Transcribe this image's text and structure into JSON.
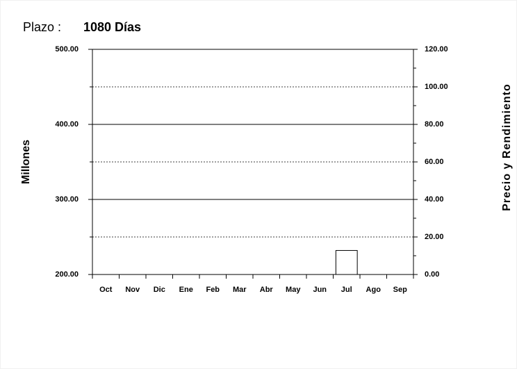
{
  "chart_data": {
    "type": "bar",
    "title": "Plazo :",
    "subtitle": "1080 Días",
    "y_label": "Millones",
    "y2_label": "Precio y Rendimiento",
    "categories": [
      "Oct",
      "Nov",
      "Dic",
      "Ene",
      "Feb",
      "Mar",
      "Abr",
      "May",
      "Jun",
      "Jul",
      "Ago",
      "Sep"
    ],
    "values": [
      null,
      null,
      null,
      null,
      null,
      null,
      null,
      null,
      null,
      232,
      null,
      null
    ],
    "color": "#ffffff",
    "ylim": [
      200,
      500
    ],
    "yticks": [
      {
        "value": 200,
        "label": "200.00"
      },
      {
        "value": 300,
        "label": "300.00"
      },
      {
        "value": 400,
        "label": "400.00"
      },
      {
        "value": 500,
        "label": "500.00"
      }
    ],
    "yminor_ticks": [
      250,
      350,
      450
    ],
    "y2lim": [
      0,
      120
    ],
    "y2ticks": [
      {
        "value": 0,
        "label": "0.00"
      },
      {
        "value": 20,
        "label": "20.00"
      },
      {
        "value": 40,
        "label": "40.00"
      },
      {
        "value": 60,
        "label": "60.00"
      },
      {
        "value": 80,
        "label": "80.00"
      },
      {
        "value": 100,
        "label": "100.00"
      },
      {
        "value": 120,
        "label": "120.00"
      }
    ],
    "y2minor_ticks": [
      10,
      30,
      50,
      70,
      90,
      110
    ],
    "grid": true
  }
}
